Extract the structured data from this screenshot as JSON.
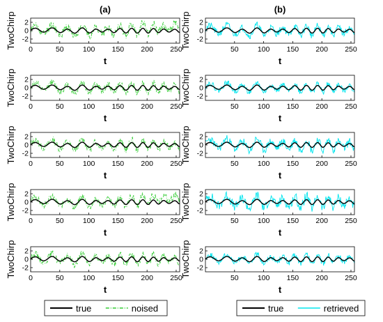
{
  "chart_data": {
    "type": "line",
    "columns": [
      {
        "title": "(a)",
        "legend": [
          {
            "label": "true",
            "color": "#000000",
            "dash": "solid"
          },
          {
            "label": "noised",
            "color": "#33cc33",
            "dash": "dashdot"
          }
        ],
        "xticks": [
          0,
          50,
          100,
          150,
          200,
          250
        ],
        "rows": [
          {
            "ylabel": "TwoChirp",
            "xlabel": "t",
            "xlim": [
              0,
              256
            ],
            "ylim": [
              -3,
              3
            ],
            "yticks": [
              -2,
              0,
              2
            ],
            "series": [
              {
                "name": "true",
                "amplitude": 0.5,
                "seed": 1
              },
              {
                "name": "noised",
                "amplitude": 1.1,
                "seed": 11,
                "drift": 1.2
              }
            ]
          },
          {
            "ylabel": "TwoChirp",
            "xlabel": "t",
            "xlim": [
              0,
              256
            ],
            "ylim": [
              -3,
              3
            ],
            "yticks": [
              -2,
              0,
              2
            ],
            "series": [
              {
                "name": "true",
                "amplitude": 0.5,
                "seed": 2
              },
              {
                "name": "noised",
                "amplitude": 1.0,
                "seed": 12,
                "drift": 0
              }
            ]
          },
          {
            "ylabel": "TwoChirp",
            "xlabel": "t",
            "xlim": [
              0,
              256
            ],
            "ylim": [
              -3,
              3
            ],
            "yticks": [
              -2,
              0,
              2
            ],
            "series": [
              {
                "name": "true",
                "amplitude": 0.5,
                "seed": 3
              },
              {
                "name": "noised",
                "amplitude": 1.0,
                "seed": 13,
                "drift": 0
              }
            ]
          },
          {
            "ylabel": "TwoChirp",
            "xlabel": "t",
            "xlim": [
              0,
              256
            ],
            "ylim": [
              -3,
              3
            ],
            "yticks": [
              -2,
              0,
              2
            ],
            "series": [
              {
                "name": "true",
                "amplitude": 0.5,
                "seed": 4
              },
              {
                "name": "noised",
                "amplitude": 1.0,
                "seed": 14,
                "drift": 1.3
              }
            ]
          },
          {
            "ylabel": "TwoChirp",
            "xlabel": "t",
            "xlim": [
              0,
              256
            ],
            "ylim": [
              -3,
              3
            ],
            "yticks": [
              -2,
              0,
              2
            ],
            "series": [
              {
                "name": "true",
                "amplitude": 0.5,
                "seed": 5
              },
              {
                "name": "noised",
                "amplitude": 1.0,
                "seed": 15,
                "drift": 0
              }
            ]
          }
        ]
      },
      {
        "title": "(b)",
        "legend": [
          {
            "label": "true",
            "color": "#000000",
            "dash": "solid"
          },
          {
            "label": "retrieved",
            "color": "#00e5ee",
            "dash": "solid"
          }
        ],
        "xticks": [
          50,
          100,
          150,
          200,
          250
        ],
        "rows": [
          {
            "ylabel": "TwoChirp",
            "xlabel": "t",
            "xlim": [
              0,
              256
            ],
            "ylim": [
              -3,
              3
            ],
            "yticks": [
              -2,
              0,
              2
            ],
            "series": [
              {
                "name": "true",
                "amplitude": 0.5,
                "seed": 1
              },
              {
                "name": "retrieved",
                "amplitude": 1.0,
                "seed": 21,
                "drift": 0
              }
            ]
          },
          {
            "ylabel": "TwoChirp",
            "xlabel": "t",
            "xlim": [
              0,
              256
            ],
            "ylim": [
              -3,
              3
            ],
            "yticks": [
              -2,
              0,
              2
            ],
            "series": [
              {
                "name": "true",
                "amplitude": 0.5,
                "seed": 2
              },
              {
                "name": "retrieved",
                "amplitude": 0.9,
                "seed": 22,
                "drift": 0
              }
            ]
          },
          {
            "ylabel": "TwoChirp",
            "xlabel": "t",
            "xlim": [
              0,
              256
            ],
            "ylim": [
              -3,
              3
            ],
            "yticks": [
              -2,
              0,
              2
            ],
            "series": [
              {
                "name": "true",
                "amplitude": 0.5,
                "seed": 3
              },
              {
                "name": "retrieved",
                "amplitude": 1.1,
                "seed": 23,
                "drift": 0
              }
            ]
          },
          {
            "ylabel": "TwoChirp",
            "xlabel": "t",
            "xlim": [
              0,
              256
            ],
            "ylim": [
              -3,
              3
            ],
            "yticks": [
              -2,
              0,
              2
            ],
            "series": [
              {
                "name": "true",
                "amplitude": 0.5,
                "seed": 4
              },
              {
                "name": "retrieved",
                "amplitude": 1.2,
                "seed": 24,
                "drift": 0
              }
            ]
          },
          {
            "ylabel": "TwoChirp",
            "xlabel": "t",
            "xlim": [
              0,
              256
            ],
            "ylim": [
              -3,
              3
            ],
            "yticks": [
              -2,
              0,
              2
            ],
            "series": [
              {
                "name": "true",
                "amplitude": 0.5,
                "seed": 5
              },
              {
                "name": "retrieved",
                "amplitude": 0.9,
                "seed": 25,
                "drift": 0
              }
            ]
          }
        ]
      }
    ]
  }
}
